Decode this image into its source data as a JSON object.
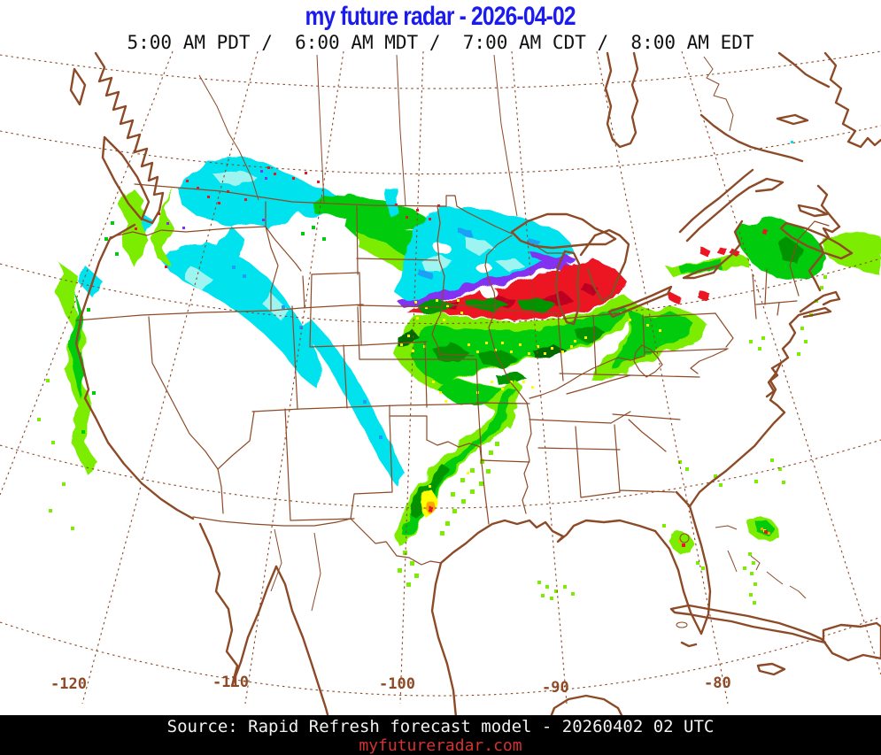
{
  "header": {
    "title": "my future radar - 2026-04-02",
    "title_color": "#1b1bee",
    "subtitle": "5:00 AM PDT /  6:00 AM MDT /  7:00 AM CDT /  8:00 AM EDT"
  },
  "map": {
    "line_color": "#8d4a27",
    "lon_labels": [
      {
        "text": "-120"
      },
      {
        "text": "-110"
      },
      {
        "text": "-100"
      },
      {
        "text": "-90"
      },
      {
        "text": "-80"
      }
    ]
  },
  "radar_palette": {
    "rain_light": "#7ced00",
    "rain_moderate": "#00cc0e",
    "rain_heavy": "#009400",
    "rain_dark": "#006b00",
    "yellow": "#ffff00",
    "orange": "#ffa400",
    "red": "#ec1424",
    "red_dark": "#bd0620",
    "purple": "#8330f2",
    "cyan": "#00e2ee",
    "cyan_light": "#9ef4f0",
    "blue": "#1ca0f6"
  },
  "footer": {
    "source": "Source: Rapid Refresh forecast model - 20260402 02 UTC",
    "website": "myfutureradar.com",
    "bg": "#000000",
    "source_color": "#f2f2f2",
    "website_color": "#d43232"
  }
}
